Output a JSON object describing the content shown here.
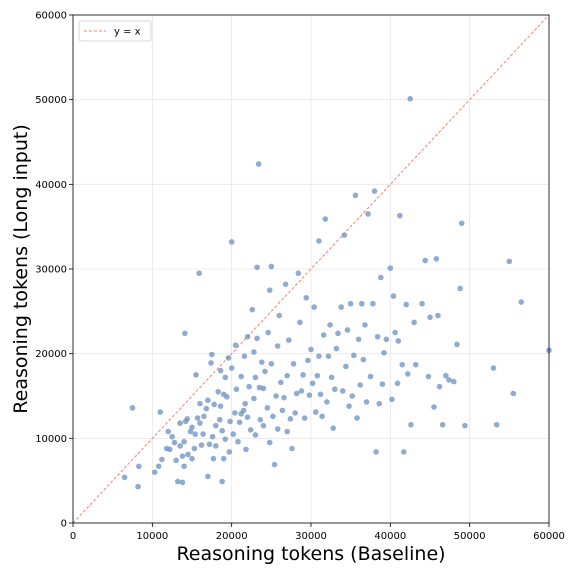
{
  "chart_data": {
    "type": "scatter",
    "title": "",
    "xlabel": "Reasoning tokens (Baseline)",
    "ylabel": "Reasoning tokens (Long input)",
    "xlim": [
      0,
      60000
    ],
    "ylim": [
      0,
      60000
    ],
    "xticks": [
      0,
      10000,
      20000,
      30000,
      40000,
      50000,
      60000
    ],
    "yticks": [
      0,
      10000,
      20000,
      30000,
      40000,
      50000,
      60000
    ],
    "grid": true,
    "legend": {
      "position": "top-left",
      "entries": [
        "y = x"
      ]
    },
    "reference_line": {
      "label": "y = x",
      "color": "#fa8072",
      "style": "dashed",
      "from": [
        0,
        0
      ],
      "to": [
        60000,
        60000
      ]
    },
    "point_color": "#6b8fc0",
    "points": [
      [
        6500,
        5400
      ],
      [
        7500,
        13600
      ],
      [
        8200,
        4300
      ],
      [
        8300,
        6700
      ],
      [
        10300,
        6000
      ],
      [
        10800,
        6700
      ],
      [
        11000,
        13100
      ],
      [
        11200,
        7500
      ],
      [
        11800,
        8800
      ],
      [
        12000,
        10800
      ],
      [
        12200,
        8700
      ],
      [
        12500,
        10200
      ],
      [
        12800,
        9500
      ],
      [
        13000,
        7400
      ],
      [
        13200,
        4900
      ],
      [
        13500,
        9100
      ],
      [
        13500,
        11800
      ],
      [
        13800,
        7900
      ],
      [
        13800,
        4800
      ],
      [
        14000,
        6700
      ],
      [
        14000,
        9600
      ],
      [
        14100,
        22400
      ],
      [
        14200,
        12000
      ],
      [
        14400,
        12300
      ],
      [
        14500,
        8100
      ],
      [
        14800,
        10800
      ],
      [
        15000,
        7600
      ],
      [
        15000,
        11300
      ],
      [
        15300,
        8800
      ],
      [
        15400,
        10500
      ],
      [
        15500,
        17500
      ],
      [
        15700,
        12400
      ],
      [
        15900,
        29500
      ],
      [
        16000,
        11800
      ],
      [
        16000,
        14100
      ],
      [
        16200,
        9200
      ],
      [
        16400,
        10500
      ],
      [
        16500,
        12600
      ],
      [
        16800,
        13500
      ],
      [
        17000,
        14500
      ],
      [
        17000,
        5500
      ],
      [
        17200,
        9300
      ],
      [
        17400,
        18900
      ],
      [
        17500,
        19900
      ],
      [
        17600,
        10200
      ],
      [
        17700,
        7600
      ],
      [
        17800,
        14000
      ],
      [
        18000,
        11500
      ],
      [
        18000,
        9100
      ],
      [
        18300,
        15500
      ],
      [
        18500,
        12200
      ],
      [
        18600,
        18000
      ],
      [
        18600,
        13800
      ],
      [
        18800,
        4900
      ],
      [
        18800,
        10900
      ],
      [
        19000,
        7600
      ],
      [
        19000,
        15200
      ],
      [
        19200,
        9900
      ],
      [
        19200,
        17200
      ],
      [
        19400,
        14900
      ],
      [
        19600,
        19500
      ],
      [
        19700,
        8400
      ],
      [
        19800,
        12000
      ],
      [
        20000,
        33200
      ],
      [
        20000,
        18300
      ],
      [
        20200,
        10500
      ],
      [
        20400,
        13000
      ],
      [
        20500,
        21000
      ],
      [
        20600,
        15800
      ],
      [
        20800,
        9600
      ],
      [
        21000,
        11900
      ],
      [
        21200,
        17300
      ],
      [
        21200,
        12900
      ],
      [
        21500,
        13300
      ],
      [
        21600,
        19700
      ],
      [
        21700,
        14100
      ],
      [
        21800,
        8700
      ],
      [
        22000,
        22000
      ],
      [
        22000,
        12500
      ],
      [
        22200,
        16100
      ],
      [
        22400,
        11000
      ],
      [
        22600,
        25200
      ],
      [
        22800,
        20200
      ],
      [
        22800,
        14700
      ],
      [
        23000,
        17200
      ],
      [
        23000,
        10400
      ],
      [
        23200,
        21800
      ],
      [
        23200,
        30200
      ],
      [
        23400,
        42400
      ],
      [
        23500,
        16000
      ],
      [
        23600,
        12200
      ],
      [
        23800,
        19000
      ],
      [
        24000,
        15900
      ],
      [
        24000,
        11500
      ],
      [
        24200,
        17900
      ],
      [
        24500,
        13600
      ],
      [
        24600,
        22500
      ],
      [
        24800,
        9500
      ],
      [
        24800,
        27500
      ],
      [
        25000,
        30300
      ],
      [
        25000,
        18800
      ],
      [
        25200,
        12600
      ],
      [
        25400,
        6900
      ],
      [
        25600,
        15000
      ],
      [
        25800,
        11100
      ],
      [
        25800,
        20900
      ],
      [
        26000,
        24500
      ],
      [
        26200,
        16600
      ],
      [
        26400,
        13300
      ],
      [
        26600,
        14800
      ],
      [
        26800,
        28200
      ],
      [
        27000,
        17400
      ],
      [
        27000,
        10800
      ],
      [
        27200,
        21600
      ],
      [
        27400,
        12300
      ],
      [
        27600,
        8800
      ],
      [
        27800,
        18800
      ],
      [
        28000,
        13000
      ],
      [
        28200,
        15300
      ],
      [
        28400,
        29500
      ],
      [
        28600,
        23700
      ],
      [
        28800,
        15600
      ],
      [
        29000,
        17500
      ],
      [
        29200,
        12400
      ],
      [
        29400,
        26600
      ],
      [
        29600,
        19200
      ],
      [
        29800,
        15100
      ],
      [
        30000,
        20500
      ],
      [
        30200,
        16500
      ],
      [
        30400,
        25500
      ],
      [
        30600,
        13100
      ],
      [
        30800,
        17400
      ],
      [
        31000,
        33300
      ],
      [
        31000,
        19700
      ],
      [
        31200,
        15200
      ],
      [
        31400,
        12600
      ],
      [
        31600,
        22200
      ],
      [
        31800,
        35900
      ],
      [
        32000,
        14300
      ],
      [
        32200,
        19700
      ],
      [
        32400,
        23400
      ],
      [
        32600,
        17200
      ],
      [
        32800,
        11200
      ],
      [
        33000,
        15800
      ],
      [
        33200,
        20600
      ],
      [
        33400,
        22400
      ],
      [
        33800,
        25500
      ],
      [
        34000,
        15600
      ],
      [
        34200,
        34000
      ],
      [
        34400,
        18500
      ],
      [
        34600,
        22800
      ],
      [
        34800,
        13800
      ],
      [
        35000,
        25900
      ],
      [
        35200,
        15000
      ],
      [
        35400,
        19800
      ],
      [
        35600,
        38700
      ],
      [
        35800,
        12400
      ],
      [
        36000,
        21700
      ],
      [
        36200,
        16300
      ],
      [
        36400,
        25900
      ],
      [
        36600,
        19300
      ],
      [
        36800,
        23400
      ],
      [
        37000,
        14300
      ],
      [
        37200,
        36500
      ],
      [
        37500,
        17300
      ],
      [
        37800,
        25900
      ],
      [
        38000,
        39200
      ],
      [
        38200,
        8400
      ],
      [
        38400,
        22000
      ],
      [
        38600,
        14100
      ],
      [
        38800,
        29000
      ],
      [
        39000,
        16400
      ],
      [
        39200,
        20100
      ],
      [
        39500,
        21700
      ],
      [
        40000,
        30100
      ],
      [
        40200,
        14600
      ],
      [
        40400,
        26800
      ],
      [
        40600,
        22500
      ],
      [
        40900,
        16500
      ],
      [
        41000,
        21500
      ],
      [
        41200,
        36300
      ],
      [
        41500,
        18700
      ],
      [
        41700,
        8400
      ],
      [
        42000,
        25800
      ],
      [
        42200,
        17600
      ],
      [
        42500,
        50100
      ],
      [
        42600,
        11600
      ],
      [
        43000,
        23700
      ],
      [
        43200,
        18700
      ],
      [
        44000,
        25900
      ],
      [
        44400,
        31000
      ],
      [
        44800,
        17300
      ],
      [
        45000,
        24300
      ],
      [
        45500,
        13700
      ],
      [
        45800,
        31200
      ],
      [
        46000,
        24500
      ],
      [
        46200,
        16100
      ],
      [
        46600,
        11600
      ],
      [
        47000,
        17400
      ],
      [
        47400,
        16900
      ],
      [
        48000,
        16700
      ],
      [
        48400,
        21100
      ],
      [
        48800,
        27700
      ],
      [
        49000,
        35400
      ],
      [
        49400,
        11500
      ],
      [
        53000,
        18300
      ],
      [
        53400,
        11600
      ],
      [
        55000,
        30900
      ],
      [
        55500,
        15300
      ],
      [
        56500,
        26100
      ],
      [
        60000,
        20400
      ]
    ]
  }
}
